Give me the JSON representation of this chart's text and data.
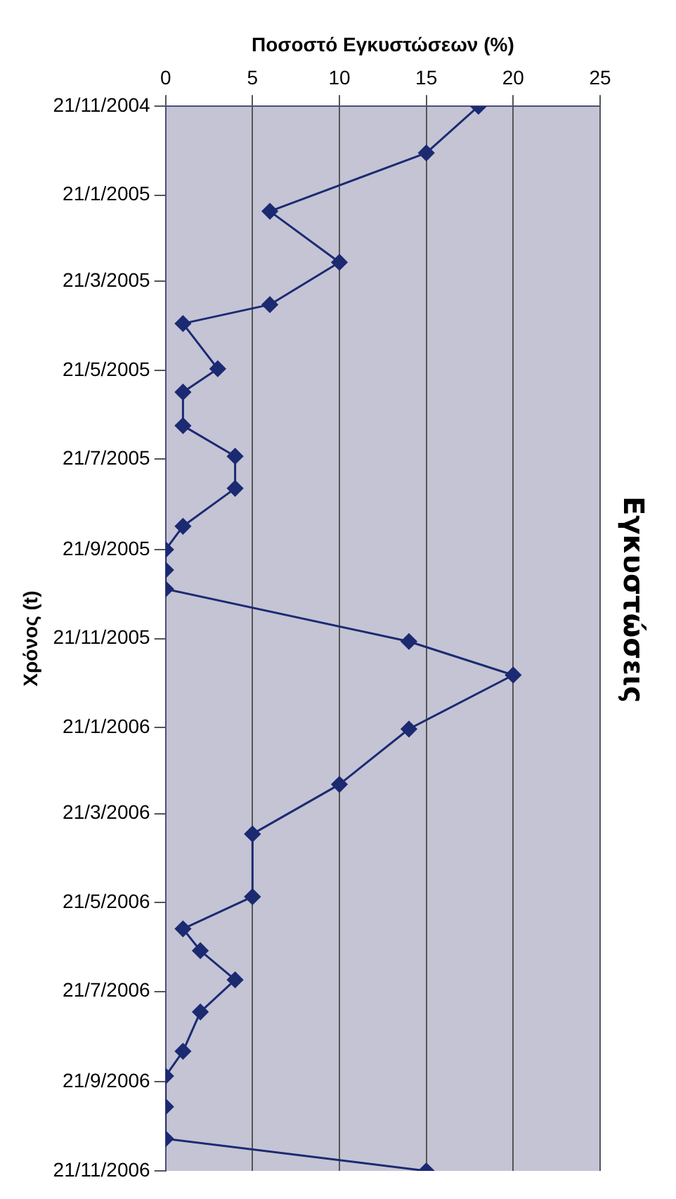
{
  "chart_data": {
    "type": "line",
    "orientation": "horizontal",
    "title": "Εγκυστώσεις",
    "xlabel": "Ποσοστό Εγκυστώσεων (%)",
    "ylabel": "Χρόνος (t)",
    "x": [
      "2004-11-21",
      "2004-12-23",
      "2005-02-01",
      "2005-03-08",
      "2005-04-06",
      "2005-04-19",
      "2005-05-20",
      "2005-06-05",
      "2005-06-28",
      "2005-07-19",
      "2005-08-10",
      "2005-09-05",
      "2005-09-21",
      "2005-10-05",
      "2005-10-18",
      "2005-11-23",
      "2005-12-16",
      "2006-01-22",
      "2006-03-01",
      "2006-04-04",
      "2006-05-17",
      "2006-06-08",
      "2006-06-23",
      "2006-07-13",
      "2006-08-04",
      "2006-08-31",
      "2006-09-17",
      "2006-10-08",
      "2006-10-30",
      "2006-11-21"
    ],
    "series": [
      {
        "color": "#1c2a72",
        "values": [
          18,
          15,
          6,
          10,
          6,
          1,
          3,
          1,
          1,
          4,
          4,
          1,
          0,
          0,
          0,
          14,
          20,
          14,
          10,
          5,
          5,
          1,
          2,
          4,
          2,
          1,
          0,
          0,
          0,
          15
        ]
      }
    ],
    "ylim": [
      "2006-11-21",
      "2004-11-21"
    ],
    "yticks": [
      {
        "value": "2004-11-21",
        "label": "21/11/2004"
      },
      {
        "value": "2005-01-21",
        "label": "21/1/2005"
      },
      {
        "value": "2005-03-21",
        "label": "21/3/2005"
      },
      {
        "value": "2005-05-21",
        "label": "21/5/2005"
      },
      {
        "value": "2005-07-21",
        "label": "21/7/2005"
      },
      {
        "value": "2005-09-21",
        "label": "21/9/2005"
      },
      {
        "value": "2005-11-21",
        "label": "21/11/2005"
      },
      {
        "value": "2006-01-21",
        "label": "21/1/2006"
      },
      {
        "value": "2006-03-21",
        "label": "21/3/2006"
      },
      {
        "value": "2006-05-21",
        "label": "21/5/2006"
      },
      {
        "value": "2006-07-21",
        "label": "21/7/2006"
      },
      {
        "value": "2006-09-21",
        "label": "21/9/2006"
      },
      {
        "value": "2006-11-21",
        "label": "21/11/2006"
      }
    ],
    "xlim": [
      0,
      25
    ],
    "xticks": [
      0,
      5,
      10,
      15,
      20,
      25
    ],
    "grid": "x",
    "marker": "diamond",
    "line_style": "solid"
  }
}
